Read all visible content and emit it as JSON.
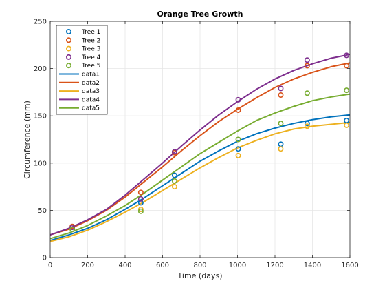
{
  "chart_data": {
    "type": "scatter",
    "title": "Orange Tree Growth",
    "xlabel": "Time (days)",
    "ylabel": "Circumference (mm)",
    "xlim": [
      0,
      1600
    ],
    "ylim": [
      0,
      250
    ],
    "xticks": [
      0,
      200,
      400,
      600,
      800,
      1000,
      1200,
      1400,
      1600
    ],
    "yticks": [
      0,
      50,
      100,
      150,
      200,
      250
    ],
    "grid": true,
    "legend_position": "top-left",
    "marker_series": [
      {
        "name": "Tree 1",
        "color": "#0072BD",
        "x": [
          118,
          484,
          664,
          1004,
          1231,
          1372,
          1582
        ],
        "y": [
          30,
          58,
          87,
          115,
          120,
          142,
          145
        ]
      },
      {
        "name": "Tree 2",
        "color": "#D95319",
        "x": [
          118,
          484,
          664,
          1004,
          1231,
          1372,
          1582
        ],
        "y": [
          33,
          69,
          111,
          156,
          172,
          203,
          203
        ]
      },
      {
        "name": "Tree 3",
        "color": "#EDB120",
        "x": [
          118,
          484,
          664,
          1004,
          1231,
          1372,
          1582
        ],
        "y": [
          30,
          51,
          75,
          108,
          115,
          139,
          140
        ]
      },
      {
        "name": "Tree 4",
        "color": "#7E2F8E",
        "x": [
          118,
          484,
          664,
          1004,
          1231,
          1372,
          1582
        ],
        "y": [
          32,
          62,
          112,
          167,
          179,
          209,
          214
        ]
      },
      {
        "name": "Tree 5",
        "color": "#77AC30",
        "x": [
          118,
          484,
          664,
          1004,
          1231,
          1372,
          1582
        ],
        "y": [
          30,
          49,
          81,
          125,
          142,
          174,
          177
        ]
      }
    ],
    "line_series": [
      {
        "name": "data1",
        "color": "#0072BD",
        "x": [
          0,
          100,
          200,
          300,
          400,
          500,
          600,
          700,
          800,
          900,
          1000,
          1100,
          1200,
          1300,
          1400,
          1500,
          1600
        ],
        "y": [
          18,
          24,
          31,
          40,
          51,
          63,
          76,
          89,
          102,
          113,
          123,
          131,
          137,
          142,
          146,
          149,
          151
        ]
      },
      {
        "name": "data2",
        "color": "#D95319",
        "x": [
          0,
          100,
          200,
          300,
          400,
          500,
          600,
          700,
          800,
          900,
          1000,
          1100,
          1200,
          1300,
          1400,
          1500,
          1600
        ],
        "y": [
          24,
          30,
          39,
          50,
          64,
          80,
          96,
          113,
          129,
          144,
          157,
          169,
          180,
          189,
          196,
          202,
          206
        ]
      },
      {
        "name": "data3",
        "color": "#EDB120",
        "x": [
          0,
          100,
          200,
          300,
          400,
          500,
          600,
          700,
          800,
          900,
          1000,
          1100,
          1200,
          1300,
          1400,
          1500,
          1600
        ],
        "y": [
          17,
          22,
          29,
          38,
          48,
          59,
          71,
          83,
          95,
          106,
          116,
          124,
          131,
          136,
          139,
          141,
          143
        ]
      },
      {
        "name": "data4",
        "color": "#7E2F8E",
        "x": [
          0,
          100,
          200,
          300,
          400,
          500,
          600,
          700,
          800,
          900,
          1000,
          1100,
          1200,
          1300,
          1400,
          1500,
          1600
        ],
        "y": [
          24,
          31,
          40,
          51,
          66,
          83,
          100,
          118,
          135,
          151,
          165,
          178,
          189,
          198,
          205,
          211,
          215
        ]
      },
      {
        "name": "data5",
        "color": "#77AC30",
        "x": [
          0,
          100,
          200,
          300,
          400,
          500,
          600,
          700,
          800,
          900,
          1000,
          1100,
          1200,
          1300,
          1400,
          1500,
          1600
        ],
        "y": [
          20,
          26,
          34,
          44,
          55,
          68,
          82,
          96,
          110,
          122,
          134,
          145,
          153,
          160,
          166,
          170,
          173
        ]
      }
    ]
  }
}
